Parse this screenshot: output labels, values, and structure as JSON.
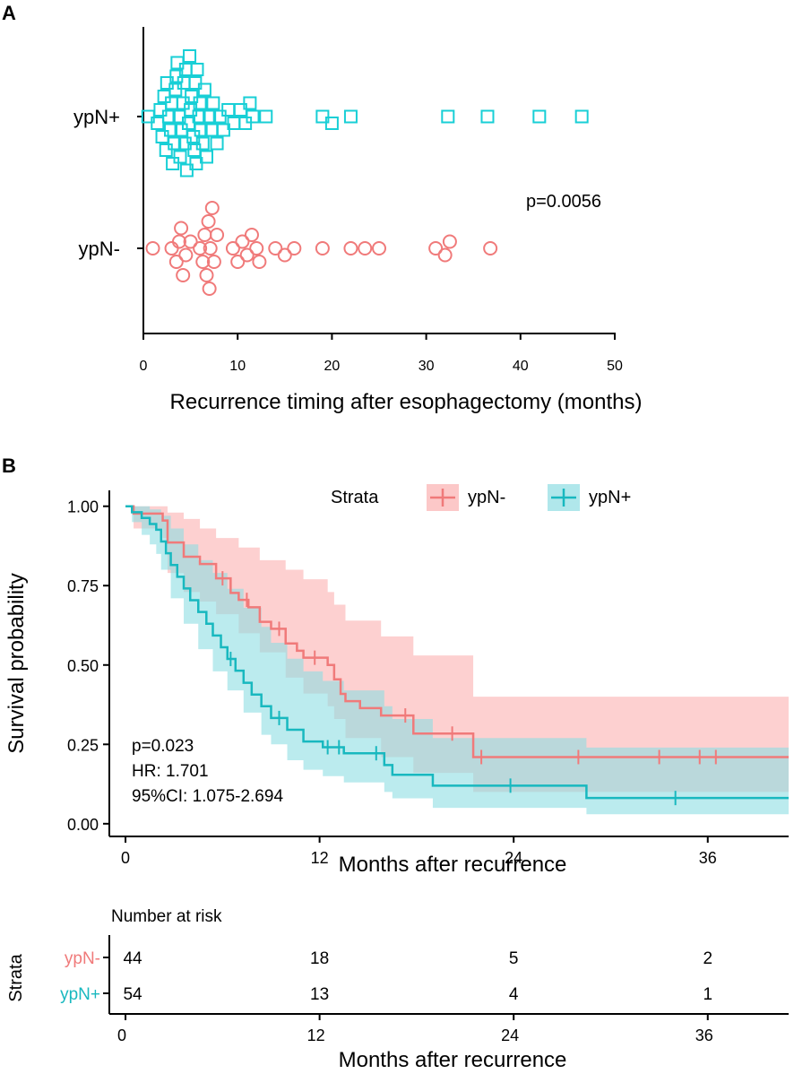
{
  "chart_data": [
    {
      "panel": "A",
      "type": "scatter",
      "xlabel": "Recurrence timing after esophagectomy (months)",
      "xlim": [
        0,
        50
      ],
      "xticks": [
        0,
        10,
        20,
        30,
        40,
        50
      ],
      "categories": [
        "ypN+",
        "ypN-"
      ],
      "annotation": "p=0.0056",
      "series": [
        {
          "name": "ypN+",
          "marker": "square",
          "color": "#18cfd6",
          "values": [
            0.5,
            1.5,
            1.8,
            2.0,
            2.2,
            2.4,
            2.5,
            2.7,
            2.9,
            3.0,
            3.1,
            3.3,
            3.4,
            3.5,
            3.6,
            3.8,
            3.9,
            4.0,
            4.2,
            4.3,
            4.4,
            4.5,
            4.6,
            4.8,
            4.9,
            5.0,
            5.1,
            5.3,
            5.4,
            5.5,
            5.6,
            5.7,
            5.9,
            6.0,
            6.1,
            6.3,
            6.5,
            6.7,
            7.0,
            7.2,
            7.4,
            7.8,
            8.1,
            8.5,
            9.0,
            9.6,
            10.3,
            10.8,
            11.3,
            11.6,
            13.0,
            19.0,
            20.0,
            22.0,
            32.3,
            36.5,
            42.0,
            46.5
          ]
        },
        {
          "name": "ypN-",
          "marker": "circle",
          "color": "#f07a7a",
          "values": [
            1.0,
            3.0,
            3.5,
            3.8,
            4.0,
            4.2,
            4.5,
            5.0,
            6.0,
            6.3,
            6.5,
            6.7,
            6.9,
            7.0,
            7.1,
            7.3,
            7.5,
            7.8,
            9.5,
            10.0,
            10.5,
            11.0,
            11.5,
            12.0,
            12.3,
            14.0,
            15.0,
            16.0,
            19.0,
            22.0,
            23.5,
            25.0,
            31.0,
            32.0,
            32.5,
            36.8
          ]
        }
      ]
    },
    {
      "panel": "B",
      "type": "line",
      "ylabel": "Survival probability",
      "xlabel": "Months after recurrence",
      "xlim": [
        -1,
        41
      ],
      "ylim": [
        -0.04,
        1.05
      ],
      "xticks": [
        0,
        12,
        24,
        36
      ],
      "yticks": [
        0.0,
        0.25,
        0.5,
        0.75,
        1.0
      ],
      "ytick_labels": [
        "0.00",
        "0.25",
        "0.50",
        "0.75",
        "1.00"
      ],
      "legend_title": "Strata",
      "legend_position": "top",
      "annotations": [
        "p=0.023",
        "HR: 1.701",
        "95%CI: 1.075-2.694"
      ],
      "series": [
        {
          "name": "ypN-",
          "color": "#f07a7a",
          "ci_color": "#fbb1b1",
          "steps": [
            [
              0,
              1.0
            ],
            [
              0.5,
              0.977
            ],
            [
              2.3,
              0.955
            ],
            [
              2.6,
              0.886
            ],
            [
              3.6,
              0.841
            ],
            [
              4.6,
              0.818
            ],
            [
              5.6,
              0.773
            ],
            [
              6.5,
              0.727
            ],
            [
              7.0,
              0.705
            ],
            [
              7.6,
              0.682
            ],
            [
              8.3,
              0.636
            ],
            [
              9.0,
              0.614
            ],
            [
              9.9,
              0.568
            ],
            [
              10.6,
              0.545
            ],
            [
              11.0,
              0.523
            ],
            [
              12.5,
              0.5
            ],
            [
              12.9,
              0.455
            ],
            [
              13.3,
              0.409
            ],
            [
              13.6,
              0.386
            ],
            [
              14.5,
              0.364
            ],
            [
              15.8,
              0.341
            ],
            [
              17.8,
              0.284
            ],
            [
              21.5,
              0.21
            ],
            [
              41,
              0.21
            ]
          ],
          "ci_upper": [
            [
              0,
              1.0
            ],
            [
              2.3,
              1.0
            ],
            [
              2.6,
              0.98
            ],
            [
              3.6,
              0.96
            ],
            [
              4.6,
              0.93
            ],
            [
              5.6,
              0.9
            ],
            [
              7.0,
              0.87
            ],
            [
              8.3,
              0.83
            ],
            [
              9.9,
              0.8
            ],
            [
              11.0,
              0.77
            ],
            [
              12.5,
              0.73
            ],
            [
              12.9,
              0.69
            ],
            [
              13.6,
              0.64
            ],
            [
              15.8,
              0.59
            ],
            [
              17.8,
              0.53
            ],
            [
              21.5,
              0.4
            ],
            [
              41,
              0.4
            ]
          ],
          "ci_lower": [
            [
              0,
              1.0
            ],
            [
              0.5,
              0.93
            ],
            [
              2.3,
              0.9
            ],
            [
              2.6,
              0.79
            ],
            [
              3.6,
              0.73
            ],
            [
              4.6,
              0.7
            ],
            [
              5.6,
              0.66
            ],
            [
              7.0,
              0.6
            ],
            [
              8.3,
              0.54
            ],
            [
              9.9,
              0.46
            ],
            [
              11.0,
              0.41
            ],
            [
              12.5,
              0.37
            ],
            [
              12.9,
              0.33
            ],
            [
              13.6,
              0.27
            ],
            [
              15.8,
              0.21
            ],
            [
              17.8,
              0.16
            ],
            [
              21.5,
              0.1
            ],
            [
              41,
              0.1
            ]
          ],
          "censor_times": [
            6.0,
            7.5,
            9.5,
            11.7,
            17.3,
            20.2,
            22.0,
            28.0,
            33.0,
            35.5,
            36.5
          ]
        },
        {
          "name": "ypN+",
          "color": "#18b8bf",
          "ci_color": "#8edde2",
          "steps": [
            [
              0,
              1.0
            ],
            [
              0.4,
              0.981
            ],
            [
              1.0,
              0.963
            ],
            [
              1.5,
              0.944
            ],
            [
              1.9,
              0.926
            ],
            [
              2.2,
              0.889
            ],
            [
              2.5,
              0.852
            ],
            [
              2.8,
              0.815
            ],
            [
              3.2,
              0.778
            ],
            [
              3.6,
              0.741
            ],
            [
              4.0,
              0.704
            ],
            [
              4.5,
              0.667
            ],
            [
              5.0,
              0.63
            ],
            [
              5.4,
              0.593
            ],
            [
              5.9,
              0.556
            ],
            [
              6.3,
              0.519
            ],
            [
              6.8,
              0.482
            ],
            [
              7.3,
              0.444
            ],
            [
              7.8,
              0.407
            ],
            [
              8.4,
              0.37
            ],
            [
              9.0,
              0.333
            ],
            [
              10.0,
              0.296
            ],
            [
              11.0,
              0.259
            ],
            [
              12.2,
              0.241
            ],
            [
              13.5,
              0.222
            ],
            [
              16.0,
              0.185
            ],
            [
              16.5,
              0.154
            ],
            [
              19.0,
              0.12
            ],
            [
              28.5,
              0.081
            ],
            [
              41,
              0.081
            ]
          ],
          "ci_upper": [
            [
              0,
              1.0
            ],
            [
              1.0,
              1.0
            ],
            [
              1.5,
              0.99
            ],
            [
              2.2,
              0.97
            ],
            [
              2.8,
              0.93
            ],
            [
              3.6,
              0.88
            ],
            [
              4.5,
              0.83
            ],
            [
              5.4,
              0.79
            ],
            [
              6.3,
              0.74
            ],
            [
              7.3,
              0.68
            ],
            [
              8.4,
              0.62
            ],
            [
              9.0,
              0.57
            ],
            [
              10.0,
              0.52
            ],
            [
              11.0,
              0.48
            ],
            [
              12.2,
              0.45
            ],
            [
              13.5,
              0.42
            ],
            [
              16.0,
              0.37
            ],
            [
              16.5,
              0.33
            ],
            [
              19.0,
              0.27
            ],
            [
              28.5,
              0.24
            ],
            [
              41,
              0.24
            ]
          ],
          "ci_lower": [
            [
              0,
              1.0
            ],
            [
              0.4,
              0.95
            ],
            [
              1.0,
              0.91
            ],
            [
              1.5,
              0.88
            ],
            [
              1.9,
              0.85
            ],
            [
              2.2,
              0.8
            ],
            [
              2.8,
              0.71
            ],
            [
              3.6,
              0.63
            ],
            [
              4.5,
              0.55
            ],
            [
              5.4,
              0.48
            ],
            [
              6.3,
              0.42
            ],
            [
              7.3,
              0.35
            ],
            [
              8.4,
              0.28
            ],
            [
              9.0,
              0.25
            ],
            [
              10.0,
              0.2
            ],
            [
              11.0,
              0.17
            ],
            [
              12.2,
              0.15
            ],
            [
              13.5,
              0.13
            ],
            [
              16.0,
              0.1
            ],
            [
              16.5,
              0.08
            ],
            [
              19.0,
              0.05
            ],
            [
              28.5,
              0.03
            ],
            [
              41,
              0.03
            ]
          ],
          "censor_times": [
            6.5,
            9.5,
            12.5,
            13.2,
            15.5,
            23.8,
            34.0
          ]
        }
      ]
    },
    {
      "panel": "B-risk",
      "type": "table",
      "title": "Number at risk",
      "ylabel": "Strata",
      "xlabel": "Months after recurrence",
      "xticks": [
        0,
        12,
        24,
        36
      ],
      "rows": [
        {
          "name": "ypN-",
          "color": "#f07a7a",
          "values": [
            44,
            18,
            5,
            2
          ]
        },
        {
          "name": "ypN+",
          "color": "#18b8bf",
          "values": [
            54,
            13,
            4,
            1
          ]
        }
      ]
    }
  ],
  "labels": {
    "panel_a": "A",
    "panel_b": "B"
  }
}
